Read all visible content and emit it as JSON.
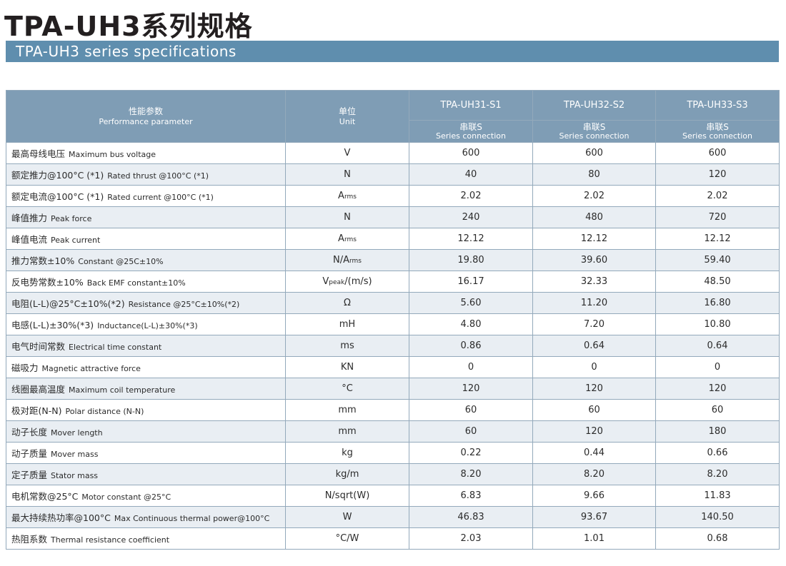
{
  "title_cn": "TPA-UH3系列规格",
  "title_en": "TPA-UH3 series specifications",
  "header": {
    "param_cn": "性能参数",
    "param_en": "Performance parameter",
    "unit_cn": "单位",
    "unit_en": "Unit",
    "models": [
      "TPA-UH31-S1",
      "TPA-UH32-S2",
      "TPA-UH33-S3"
    ],
    "connection_cn": "串联S",
    "connection_en": "Series connection"
  },
  "rows": [
    {
      "cn": "最高母线电压",
      "en": "Maximum bus voltage",
      "unit": "V",
      "unit_sub": "",
      "values": [
        "600",
        "600",
        "600"
      ]
    },
    {
      "cn": "额定推力@100°C (*1)",
      "en": "Rated thrust @100°C (*1)",
      "unit": "N",
      "unit_sub": "",
      "values": [
        "40",
        "80",
        "120"
      ]
    },
    {
      "cn": "额定电流@100°C (*1)",
      "en": "Rated current @100°C (*1)",
      "unit": "A",
      "unit_sub": "rms",
      "values": [
        "2.02",
        "2.02",
        "2.02"
      ]
    },
    {
      "cn": "峰值推力",
      "en": "Peak force",
      "unit": "N",
      "unit_sub": "",
      "values": [
        "240",
        "480",
        "720"
      ]
    },
    {
      "cn": "峰值电流",
      "en": "Peak current",
      "unit": "A",
      "unit_sub": "rms",
      "values": [
        "12.12",
        "12.12",
        "12.12"
      ]
    },
    {
      "cn": "推力常数±10%",
      "en": "Constant @25C±10%",
      "unit": "N/A",
      "unit_sub": "rms",
      "values": [
        "19.80",
        "39.60",
        "59.40"
      ]
    },
    {
      "cn": "反电势常数±10%",
      "en": "Back EMF constant±10%",
      "unit": "V",
      "unit_sub": "peak",
      "unit_suffix": "/(m/s)",
      "values": [
        "16.17",
        "32.33",
        "48.50"
      ]
    },
    {
      "cn": "电阻(L-L)@25°C±10%(*2)",
      "en": "Resistance @25°C±10%(*2)",
      "unit": "Ω",
      "unit_sub": "",
      "values": [
        "5.60",
        "11.20",
        "16.80"
      ]
    },
    {
      "cn": "电感(L-L)±30%(*3)",
      "en": "Inductance(L-L)±30%(*3)",
      "unit": "mH",
      "unit_sub": "",
      "values": [
        "4.80",
        "7.20",
        "10.80"
      ]
    },
    {
      "cn": "电气时间常数",
      "en": "Electrical time constant",
      "unit": "ms",
      "unit_sub": "",
      "values": [
        "0.86",
        "0.64",
        "0.64"
      ]
    },
    {
      "cn": "磁吸力",
      "en": "Magnetic attractive force",
      "unit": "KN",
      "unit_sub": "",
      "values": [
        "0",
        "0",
        "0"
      ]
    },
    {
      "cn": "线圈最高温度",
      "en": "Maximum coil temperature",
      "unit": "°C",
      "unit_sub": "",
      "values": [
        "120",
        "120",
        "120"
      ]
    },
    {
      "cn": "极对距(N-N)",
      "en": "Polar distance (N-N)",
      "unit": "mm",
      "unit_sub": "",
      "values": [
        "60",
        "60",
        "60"
      ]
    },
    {
      "cn": "动子长度",
      "en": "Mover length",
      "unit": "mm",
      "unit_sub": "",
      "values": [
        "60",
        "120",
        "180"
      ]
    },
    {
      "cn": "动子质量",
      "en": "Mover mass",
      "unit": "kg",
      "unit_sub": "",
      "values": [
        "0.22",
        "0.44",
        "0.66"
      ]
    },
    {
      "cn": "定子质量",
      "en": "Stator mass",
      "unit": "kg/m",
      "unit_sub": "",
      "values": [
        "8.20",
        "8.20",
        "8.20"
      ]
    },
    {
      "cn": "电机常数@25°C",
      "en": "Motor constant @25°C",
      "unit": "N/sqrt(W)",
      "unit_sub": "",
      "values": [
        "6.83",
        "9.66",
        "11.83"
      ]
    },
    {
      "cn": "最大持续热功率@100°C",
      "en": "Max Continuous thermal power@100°C",
      "unit": "W",
      "unit_sub": "",
      "values": [
        "46.83",
        "93.67",
        "140.50"
      ]
    },
    {
      "cn": "热阻系数",
      "en": "Thermal resistance coefficient",
      "unit": "°C/W",
      "unit_sub": "",
      "values": [
        "2.03",
        "1.01",
        "0.68"
      ]
    }
  ],
  "colors": {
    "banner": "#5f8eae",
    "header": "#7f9db5",
    "stripe": "#e9eef3",
    "border": "#93a9bb"
  }
}
